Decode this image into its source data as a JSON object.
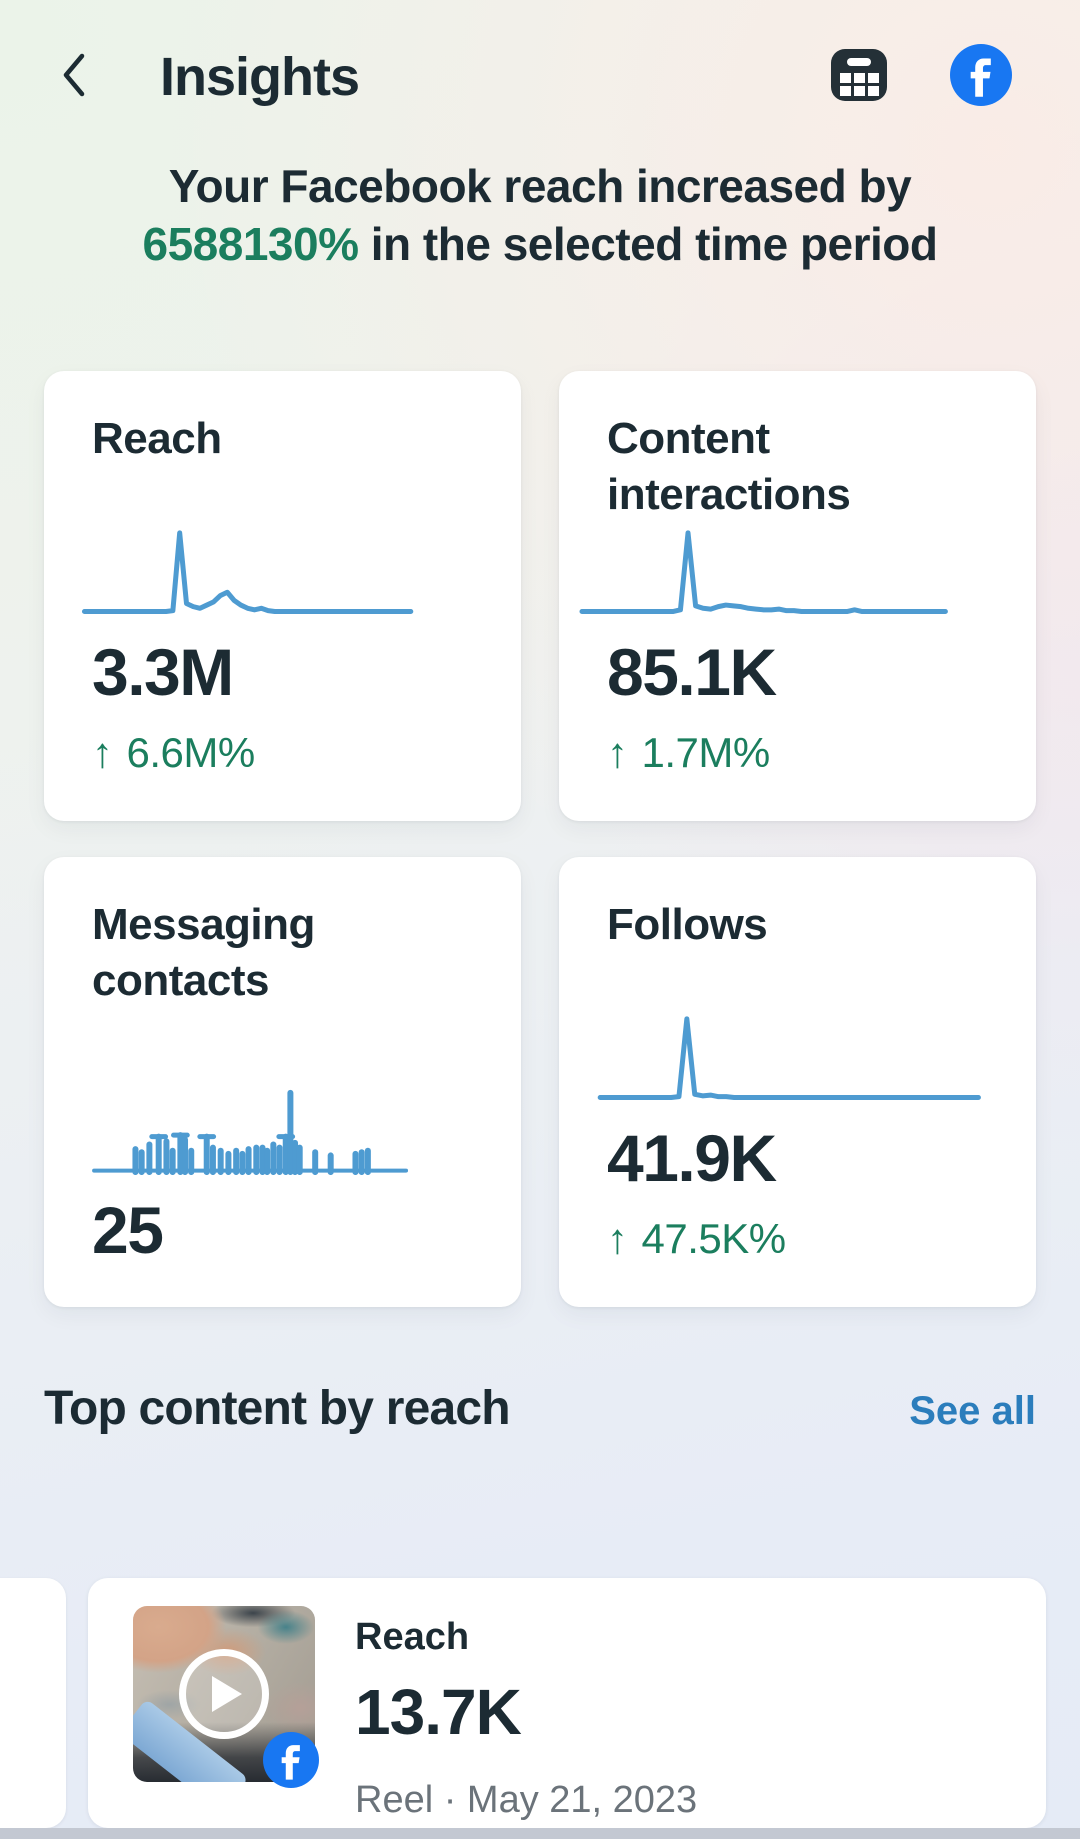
{
  "header": {
    "title": "Insights"
  },
  "headline": {
    "part1": "Your Facebook reach increased by ",
    "highlight": "6588130%",
    "part2": " in the selected time period"
  },
  "cards": [
    {
      "title": "Reach",
      "value": "3.3M",
      "delta_arrow": "↑",
      "delta": "6.6M%"
    },
    {
      "title": "Content interactions",
      "value": "85.1K",
      "delta_arrow": "↑",
      "delta": "1.7M%"
    },
    {
      "title": "Messaging contacts",
      "value": "25"
    },
    {
      "title": "Follows",
      "value": "41.9K",
      "delta_arrow": "↑",
      "delta": "47.5K%"
    }
  ],
  "top_content": {
    "heading": "Top content by reach",
    "see_all_label": "See all",
    "item": {
      "metric_label": "Reach",
      "metric_value": "13.7K",
      "meta": "Reel · May 21, 2023"
    }
  },
  "chart_data": [
    {
      "name": "Reach trend",
      "type": "line",
      "ylim": [
        0,
        100
      ],
      "values": [
        2,
        2,
        2,
        2,
        2,
        2,
        2,
        2,
        2,
        2,
        2,
        2,
        2,
        3,
        100,
        12,
        8,
        6,
        10,
        14,
        22,
        26,
        16,
        10,
        6,
        4,
        6,
        3,
        2,
        2,
        2,
        2,
        2,
        2,
        2,
        2,
        2,
        2,
        2,
        2,
        2,
        2,
        2,
        2,
        2,
        2,
        2,
        2,
        2
      ]
    },
    {
      "name": "Content interactions trend",
      "type": "line",
      "ylim": [
        0,
        100
      ],
      "values": [
        2,
        2,
        2,
        2,
        2,
        2,
        2,
        2,
        2,
        2,
        2,
        2,
        2,
        4,
        100,
        9,
        6,
        5,
        8,
        10,
        9,
        8,
        6,
        5,
        4,
        4,
        5,
        3,
        3,
        2,
        2,
        2,
        2,
        2,
        2,
        2,
        4,
        2,
        2,
        2,
        2,
        2,
        2,
        2,
        2,
        2,
        2,
        2,
        2
      ]
    },
    {
      "name": "Messaging contacts trend",
      "type": "bars",
      "ylim": [
        0,
        100
      ],
      "bars": [
        [
          13,
          28,
          0
        ],
        [
          15,
          24,
          0
        ],
        [
          17.5,
          34,
          0
        ],
        [
          20.5,
          44,
          1
        ],
        [
          23,
          38,
          0
        ],
        [
          25,
          26,
          0
        ],
        [
          27.5,
          46,
          1
        ],
        [
          29,
          40,
          0
        ],
        [
          31,
          26,
          0
        ],
        [
          36,
          44,
          1
        ],
        [
          38,
          30,
          0
        ],
        [
          40.5,
          26,
          0
        ],
        [
          43,
          22,
          0
        ],
        [
          45.5,
          26,
          0
        ],
        [
          47.5,
          22,
          0
        ],
        [
          49.5,
          28,
          0
        ],
        [
          52,
          30,
          0
        ],
        [
          54,
          30,
          0
        ],
        [
          55.5,
          26,
          0
        ],
        [
          57.5,
          34,
          0
        ],
        [
          59.5,
          30,
          0
        ],
        [
          61.5,
          44,
          1
        ],
        [
          63,
          100,
          0
        ],
        [
          64.5,
          36,
          0
        ],
        [
          66,
          30,
          0
        ],
        [
          71,
          24,
          0
        ],
        [
          76,
          20,
          0
        ],
        [
          84,
          22,
          0
        ],
        [
          86,
          24,
          0
        ],
        [
          88,
          26,
          0
        ]
      ]
    },
    {
      "name": "Follows trend",
      "type": "line",
      "ylim": [
        0,
        100
      ],
      "values": [
        2,
        2,
        2,
        2,
        2,
        2,
        2,
        2,
        2,
        2,
        3,
        100,
        6,
        4,
        5,
        3,
        3,
        2,
        2,
        2,
        2,
        2,
        2,
        2,
        2,
        2,
        2,
        2,
        2,
        2,
        2,
        2,
        2,
        2,
        2,
        2,
        2,
        2,
        2,
        2,
        2,
        2,
        2,
        2,
        2,
        2,
        2,
        2,
        2
      ]
    }
  ],
  "colors": {
    "accent_blue": "#4E9BD1",
    "positive_green": "#1B7E5E",
    "link_blue": "#2B7DBC",
    "facebook_blue": "#1877F2",
    "text_primary": "#1C2B33",
    "text_secondary": "#6B737A",
    "bottom_bar": "#C3C8D2"
  }
}
